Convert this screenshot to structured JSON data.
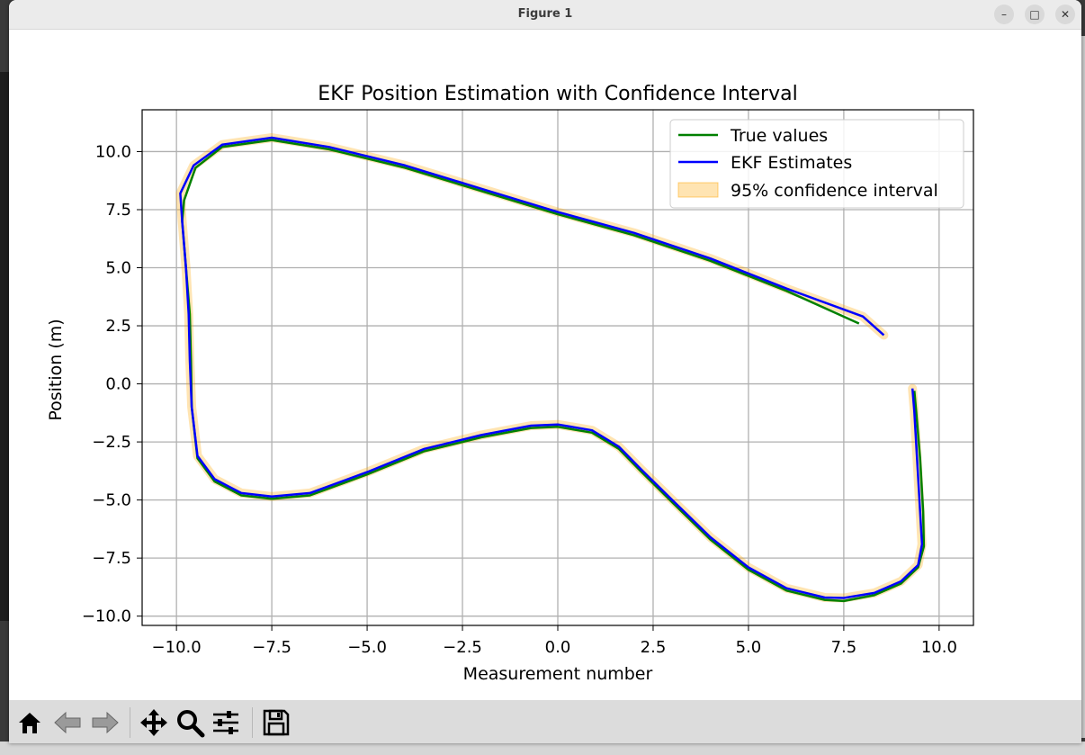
{
  "window": {
    "title": "Figure 1"
  },
  "window_controls": {
    "minimize": "–",
    "maximize": "□",
    "close": "✕"
  },
  "toolbar": {
    "buttons": [
      "home-icon",
      "back-arrow-icon",
      "forward-arrow-icon",
      "pan-icon",
      "zoom-icon",
      "configure-subplots-icon",
      "save-icon"
    ]
  },
  "colors": {
    "true": "#008000",
    "ekf": "#0000ff",
    "ci": "#ffa500"
  },
  "chart_data": {
    "type": "line",
    "title": "EKF Position Estimation with Confidence Interval",
    "xlabel": "Measurement number",
    "ylabel": "Position (m)",
    "xlim": [
      -10.9,
      10.9
    ],
    "ylim": [
      -10.4,
      11.8
    ],
    "xticks": [
      -10.0,
      -7.5,
      -5.0,
      -2.5,
      0.0,
      2.5,
      5.0,
      7.5,
      10.0
    ],
    "xtick_labels": [
      "−10.0",
      "−7.5",
      "−5.0",
      "−2.5",
      "0.0",
      "2.5",
      "5.0",
      "7.5",
      "10.0"
    ],
    "yticks": [
      10.0,
      7.5,
      5.0,
      2.5,
      0.0,
      -2.5,
      -5.0,
      -7.5,
      -10.0
    ],
    "ytick_labels": [
      "10.0",
      "7.5",
      "5.0",
      "2.5",
      "0.0",
      "−2.5",
      "−5.0",
      "−7.5",
      "−10.0"
    ],
    "grid": true,
    "legend_position": "upper right",
    "series": [
      {
        "name": "True values",
        "x": [
          7.9,
          6.0,
          4.0,
          2.0,
          0.0,
          -2.0,
          -4.0,
          -6.0,
          -7.5,
          -8.8,
          -9.5,
          -9.8,
          -9.85,
          -9.75,
          -9.65,
          -9.62,
          -9.6,
          -9.45,
          -9.0,
          -8.3,
          -7.5,
          -6.5,
          -5.0,
          -3.5,
          -2.0,
          -0.7,
          0.0,
          0.9,
          1.6,
          2.2,
          3.0,
          4.0,
          5.0,
          6.0,
          7.0,
          7.5,
          8.3,
          9.0,
          9.45,
          9.6,
          9.58,
          9.5,
          9.4,
          9.35
        ],
        "y": [
          2.6,
          4.0,
          5.3,
          6.4,
          7.3,
          8.3,
          9.3,
          10.1,
          10.5,
          10.2,
          9.3,
          7.9,
          7.0,
          5.0,
          3.0,
          1.0,
          -1.0,
          -3.2,
          -4.2,
          -4.8,
          -4.95,
          -4.8,
          -3.9,
          -2.9,
          -2.3,
          -1.9,
          -1.85,
          -2.1,
          -2.8,
          -3.8,
          -5.1,
          -6.7,
          -8.0,
          -8.9,
          -9.3,
          -9.35,
          -9.1,
          -8.6,
          -7.9,
          -7.0,
          -5.5,
          -3.2,
          -1.2,
          -0.3
        ]
      },
      {
        "name": "EKF Estimates",
        "x": [
          8.55,
          8.0,
          6.0,
          4.0,
          2.0,
          0.0,
          -2.0,
          -4.0,
          -6.0,
          -7.5,
          -8.8,
          -9.55,
          -9.9,
          -9.85,
          -9.75,
          -9.68,
          -9.65,
          -9.6,
          -9.45,
          -9.0,
          -8.3,
          -7.5,
          -6.5,
          -5.0,
          -3.5,
          -2.0,
          -0.7,
          0.0,
          0.9,
          1.6,
          2.2,
          3.0,
          4.0,
          5.0,
          6.0,
          7.0,
          7.5,
          8.3,
          9.0,
          9.45,
          9.55,
          9.5,
          9.42,
          9.35,
          9.3
        ],
        "y": [
          2.1,
          2.9,
          4.1,
          5.4,
          6.5,
          7.4,
          8.4,
          9.4,
          10.2,
          10.6,
          10.3,
          9.4,
          8.2,
          7.0,
          5.0,
          3.0,
          1.0,
          -1.0,
          -3.1,
          -4.1,
          -4.7,
          -4.85,
          -4.7,
          -3.8,
          -2.8,
          -2.2,
          -1.8,
          -1.75,
          -2.0,
          -2.7,
          -3.7,
          -5.0,
          -6.6,
          -7.9,
          -8.8,
          -9.2,
          -9.22,
          -9.0,
          -8.5,
          -7.8,
          -6.9,
          -5.5,
          -3.2,
          -1.2,
          -0.2
        ]
      }
    ],
    "legend": [
      "True values",
      "EKF Estimates",
      "95% confidence interval"
    ]
  }
}
